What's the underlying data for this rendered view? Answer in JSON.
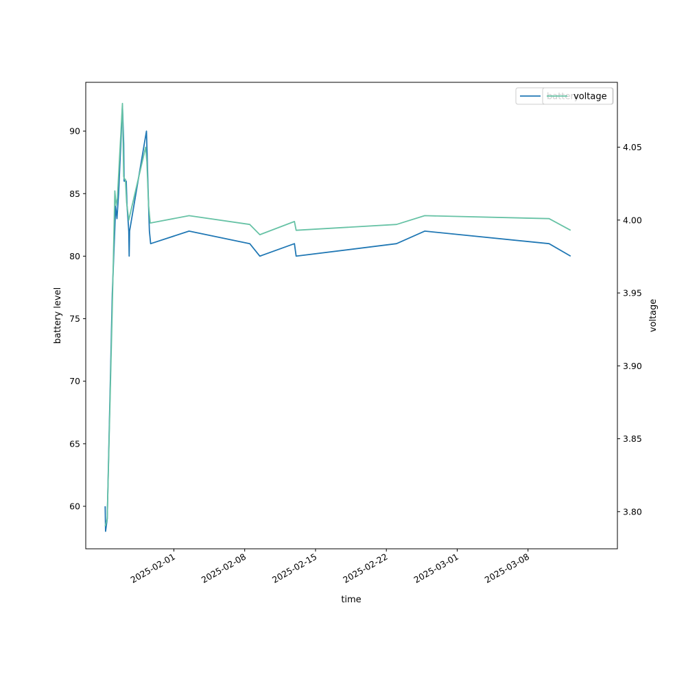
{
  "chart_data": {
    "type": "line",
    "xlabel": "time",
    "ylabel": "battery level",
    "ylabel_right": "voltage",
    "x_ticks": [
      "2025-02-01",
      "2025-02-08",
      "2025-02-15",
      "2025-02-22",
      "2025-03-01",
      "2025-03-08"
    ],
    "y_ticks": [
      60,
      65,
      70,
      75,
      80,
      85,
      90
    ],
    "y_right_ticks": [
      "3.80",
      "3.85",
      "3.90",
      "3.95",
      "4.00",
      "4.05"
    ],
    "xlim": [
      "2025-01-23T07:00",
      "2025-03-16T20:00"
    ],
    "ylim": [
      56.6,
      93.9
    ],
    "ylim_right": [
      3.7745,
      4.0945
    ],
    "legend_placement": "upper-right",
    "series": [
      {
        "name": "battery",
        "axis": "left",
        "color": "#1f77b4",
        "points": [
          [
            "2025-01-25T05:00",
            60
          ],
          [
            "2025-01-25T06:00",
            58
          ],
          [
            "2025-01-25T10:00",
            59
          ],
          [
            "2025-01-25T22:00",
            77
          ],
          [
            "2025-01-26T06:00",
            84
          ],
          [
            "2025-01-26T09:00",
            83
          ],
          [
            "2025-01-26T13:00",
            85
          ],
          [
            "2025-01-26T22:00",
            92
          ],
          [
            "2025-01-27T01:00",
            89
          ],
          [
            "2025-01-27T02:00",
            86
          ],
          [
            "2025-01-27T07:00",
            86
          ],
          [
            "2025-01-27T09:00",
            84
          ],
          [
            "2025-01-27T11:00",
            83
          ],
          [
            "2025-01-27T13:00",
            82
          ],
          [
            "2025-01-27T14:00",
            80
          ],
          [
            "2025-01-27T15:00",
            82
          ],
          [
            "2025-01-29T07:00",
            90
          ],
          [
            "2025-01-29T12:00",
            84
          ],
          [
            "2025-01-29T14:00",
            82
          ],
          [
            "2025-01-29T17:00",
            81
          ],
          [
            "2025-02-02T12:00",
            82
          ],
          [
            "2025-02-08T12:00",
            81
          ],
          [
            "2025-02-09T12:00",
            80
          ],
          [
            "2025-02-12T22:00",
            81
          ],
          [
            "2025-02-13T02:00",
            80
          ],
          [
            "2025-02-23T00:00",
            81
          ],
          [
            "2025-02-25T19:00",
            82
          ],
          [
            "2025-03-10T02:00",
            81
          ],
          [
            "2025-03-12T05:00",
            80
          ]
        ]
      },
      {
        "name": "voltage",
        "axis": "right",
        "color": "#66c2a5",
        "points": [
          [
            "2025-01-25T05:00",
            3.79
          ],
          [
            "2025-01-25T10:00",
            3.795
          ],
          [
            "2025-01-25T22:00",
            3.94
          ],
          [
            "2025-01-26T04:00",
            4.02
          ],
          [
            "2025-01-26T07:00",
            4.01
          ],
          [
            "2025-01-26T10:00",
            4.015
          ],
          [
            "2025-01-26T22:00",
            4.08
          ],
          [
            "2025-01-27T01:00",
            4.03
          ],
          [
            "2025-01-27T03:00",
            4.028
          ],
          [
            "2025-01-27T05:00",
            4.028
          ],
          [
            "2025-01-27T08:00",
            4.012
          ],
          [
            "2025-01-27T13:00",
            4.0
          ],
          [
            "2025-01-29T05:00",
            4.05
          ],
          [
            "2025-01-29T08:00",
            4.04
          ],
          [
            "2025-01-29T12:00",
            4.01
          ],
          [
            "2025-01-29T16:00",
            3.998
          ],
          [
            "2025-02-02T12:00",
            4.003
          ],
          [
            "2025-02-08T12:00",
            3.997
          ],
          [
            "2025-02-09T12:00",
            3.99
          ],
          [
            "2025-02-12T22:00",
            3.999
          ],
          [
            "2025-02-13T02:00",
            3.993
          ],
          [
            "2025-02-23T00:00",
            3.997
          ],
          [
            "2025-02-25T19:00",
            4.003
          ],
          [
            "2025-03-10T02:00",
            4.001
          ],
          [
            "2025-03-12T05:00",
            3.993
          ]
        ]
      }
    ]
  }
}
